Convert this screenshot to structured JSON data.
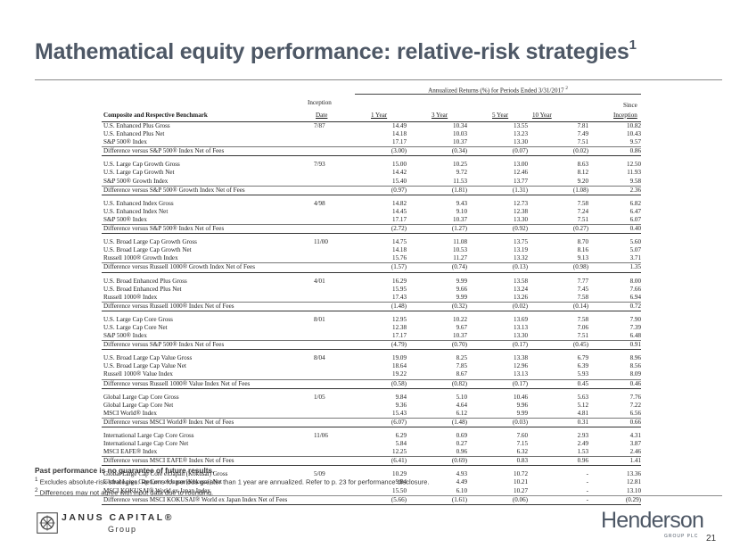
{
  "title": "Mathematical equity performance: relative-risk strategies",
  "title_footnote": "1",
  "table": {
    "annualized_header": "Annualized Returns (%) for Periods Ended 3/31/2017",
    "annualized_footnote": "2",
    "col_benchmark": "Composite and Respective Benchmark",
    "col_inception_l1": "Inception",
    "col_inception_l2": "Date",
    "col_1y": "1 Year",
    "col_3y": "3 Year",
    "col_5y": "5 Year",
    "col_10y": "10 Year",
    "col_since_l1": "Since",
    "col_since_l2": "Inception",
    "groups": [
      {
        "rows": [
          {
            "name": "U.S. Enhanced Plus Gross",
            "date": "7/87",
            "v1": "14.49",
            "v3": "10.34",
            "v5": "13.55",
            "v10": "7.81",
            "vs": "10.82"
          },
          {
            "name": "U.S. Enhanced Plus Net",
            "date": "",
            "v1": "14.18",
            "v3": "10.03",
            "v5": "13.23",
            "v10": "7.49",
            "vs": "10.43"
          },
          {
            "name": "S&P 500® Index",
            "date": "",
            "v1": "17.17",
            "v3": "10.37",
            "v5": "13.30",
            "v10": "7.51",
            "vs": "9.57"
          },
          {
            "name": "Difference versus S&P 500® Index Net of Fees",
            "date": "",
            "v1": "(3.00)",
            "v3": "(0.34)",
            "v5": "(0.07)",
            "v10": "(0.02)",
            "vs": "0.86"
          }
        ]
      },
      {
        "rows": [
          {
            "name": "U.S. Large Cap Growth Gross",
            "date": "7/93",
            "v1": "15.00",
            "v3": "10.25",
            "v5": "13.00",
            "v10": "8.63",
            "vs": "12.50"
          },
          {
            "name": "U.S. Large Cap Growth Net",
            "date": "",
            "v1": "14.42",
            "v3": "9.72",
            "v5": "12.46",
            "v10": "8.12",
            "vs": "11.93"
          },
          {
            "name": "S&P 500® Growth Index",
            "date": "",
            "v1": "15.40",
            "v3": "11.53",
            "v5": "13.77",
            "v10": "9.20",
            "vs": "9.58"
          },
          {
            "name": "Difference versus S&P 500® Growth Index Net of Fees",
            "date": "",
            "v1": "(0.97)",
            "v3": "(1.81)",
            "v5": "(1.31)",
            "v10": "(1.08)",
            "vs": "2.36"
          }
        ]
      },
      {
        "rows": [
          {
            "name": "U.S. Enhanced Index Gross",
            "date": "4/98",
            "v1": "14.82",
            "v3": "9.43",
            "v5": "12.73",
            "v10": "7.58",
            "vs": "6.82"
          },
          {
            "name": "U.S. Enhanced Index Net",
            "date": "",
            "v1": "14.45",
            "v3": "9.10",
            "v5": "12.38",
            "v10": "7.24",
            "vs": "6.47"
          },
          {
            "name": "S&P 500® Index",
            "date": "",
            "v1": "17.17",
            "v3": "10.37",
            "v5": "13.30",
            "v10": "7.51",
            "vs": "6.07"
          },
          {
            "name": "Difference versus S&P 500® Index Net of Fees",
            "date": "",
            "v1": "(2.72)",
            "v3": "(1.27)",
            "v5": "(0.92)",
            "v10": "(0.27)",
            "vs": "0.40"
          }
        ]
      },
      {
        "rows": [
          {
            "name": "U.S. Broad Large Cap Growth Gross",
            "date": "11/00",
            "v1": "14.75",
            "v3": "11.08",
            "v5": "13.75",
            "v10": "8.70",
            "vs": "5.60"
          },
          {
            "name": "U.S. Broad Large Cap Growth Net",
            "date": "",
            "v1": "14.18",
            "v3": "10.53",
            "v5": "13.19",
            "v10": "8.16",
            "vs": "5.07"
          },
          {
            "name": "Russell 1000® Growth Index",
            "date": "",
            "v1": "15.76",
            "v3": "11.27",
            "v5": "13.32",
            "v10": "9.13",
            "vs": "3.71"
          },
          {
            "name": "Difference versus Russell 1000® Growth Index Net of Fees",
            "date": "",
            "v1": "(1.57)",
            "v3": "(0.74)",
            "v5": "(0.13)",
            "v10": "(0.98)",
            "vs": "1.35"
          }
        ]
      },
      {
        "rows": [
          {
            "name": "U.S. Broad Enhanced Plus Gross",
            "date": "4/01",
            "v1": "16.29",
            "v3": "9.99",
            "v5": "13.58",
            "v10": "7.77",
            "vs": "8.00"
          },
          {
            "name": "U.S. Broad Enhanced Plus Net",
            "date": "",
            "v1": "15.95",
            "v3": "9.66",
            "v5": "13.24",
            "v10": "7.45",
            "vs": "7.66"
          },
          {
            "name": "Russell 1000® Index",
            "date": "",
            "v1": "17.43",
            "v3": "9.99",
            "v5": "13.26",
            "v10": "7.58",
            "vs": "6.94"
          },
          {
            "name": "Difference versus Russell 1000® Index Net of Fees",
            "date": "",
            "v1": "(1.48)",
            "v3": "(0.32)",
            "v5": "(0.02)",
            "v10": "(0.14)",
            "vs": "0.72"
          }
        ]
      },
      {
        "rows": [
          {
            "name": "U.S. Large Cap Core Gross",
            "date": "8/01",
            "v1": "12.95",
            "v3": "10.22",
            "v5": "13.69",
            "v10": "7.58",
            "vs": "7.90"
          },
          {
            "name": "U.S. Large Cap Core Net",
            "date": "",
            "v1": "12.38",
            "v3": "9.67",
            "v5": "13.13",
            "v10": "7.06",
            "vs": "7.39"
          },
          {
            "name": "S&P 500® Index",
            "date": "",
            "v1": "17.17",
            "v3": "10.37",
            "v5": "13.30",
            "v10": "7.51",
            "vs": "6.48"
          },
          {
            "name": "Difference versus S&P 500® Index Net of Fees",
            "date": "",
            "v1": "(4.79)",
            "v3": "(0.70)",
            "v5": "(0.17)",
            "v10": "(0.45)",
            "vs": "0.91"
          }
        ]
      },
      {
        "rows": [
          {
            "name": "U.S. Broad Large Cap Value Gross",
            "date": "8/04",
            "v1": "19.09",
            "v3": "8.25",
            "v5": "13.38",
            "v10": "6.79",
            "vs": "8.96"
          },
          {
            "name": "U.S. Broad Large Cap Value Net",
            "date": "",
            "v1": "18.64",
            "v3": "7.85",
            "v5": "12.96",
            "v10": "6.39",
            "vs": "8.56"
          },
          {
            "name": "Russell 1000® Value Index",
            "date": "",
            "v1": "19.22",
            "v3": "8.67",
            "v5": "13.13",
            "v10": "5.93",
            "vs": "8.09"
          },
          {
            "name": "Difference versus Russell 1000® Value Index Net of Fees",
            "date": "",
            "v1": "(0.58)",
            "v3": "(0.82)",
            "v5": "(0.17)",
            "v10": "0.45",
            "vs": "0.46"
          }
        ]
      },
      {
        "rows": [
          {
            "name": "Global Large Cap Core Gross",
            "date": "1/05",
            "v1": "9.84",
            "v3": "5.10",
            "v5": "10.46",
            "v10": "5.63",
            "vs": "7.76"
          },
          {
            "name": "Global Large Cap Core Net",
            "date": "",
            "v1": "9.36",
            "v3": "4.64",
            "v5": "9.96",
            "v10": "5.12",
            "vs": "7.22"
          },
          {
            "name": "MSCI World® Index",
            "date": "",
            "v1": "15.43",
            "v3": "6.12",
            "v5": "9.99",
            "v10": "4.81",
            "vs": "6.56"
          },
          {
            "name": "Difference versus MSCI World® Index Net of Fees",
            "date": "",
            "v1": "(6.07)",
            "v3": "(1.48)",
            "v5": "(0.03)",
            "v10": "0.31",
            "vs": "0.66"
          }
        ]
      },
      {
        "rows": [
          {
            "name": "International Large Cap Core Gross",
            "date": "11/06",
            "v1": "6.29",
            "v3": "0.69",
            "v5": "7.60",
            "v10": "2.93",
            "vs": "4.31"
          },
          {
            "name": "International Large Cap Core Net",
            "date": "",
            "v1": "5.84",
            "v3": "0.27",
            "v5": "7.15",
            "v10": "2.49",
            "vs": "3.87"
          },
          {
            "name": "MSCI EAFE® Index",
            "date": "",
            "v1": "12.25",
            "v3": "0.96",
            "v5": "6.32",
            "v10": "1.53",
            "vs": "2.46"
          },
          {
            "name": "Difference versus MSCI EAFE® Index Net of Fees",
            "date": "",
            "v1": "(6.41)",
            "v3": "(0.69)",
            "v5": "0.83",
            "v10": "0.96",
            "vs": "1.41"
          }
        ]
      },
      {
        "rows": [
          {
            "name": "Global Large Cap Core exJapan (Kokusai) Gross",
            "date": "5/09",
            "v1": "10.29",
            "v3": "4.93",
            "v5": "10.72",
            "v10": "-",
            "vs": "13.36"
          },
          {
            "name": "Global Large Cap Core exJapan (Kokusai) Net",
            "date": "",
            "v1": "9.84",
            "v3": "4.49",
            "v5": "10.21",
            "v10": "-",
            "vs": "12.81"
          },
          {
            "name": "MSCI KOKUSAI® World ex Japan Index",
            "date": "",
            "v1": "15.50",
            "v3": "6.10",
            "v5": "10.27",
            "v10": "-",
            "vs": "13.10"
          },
          {
            "name": "Difference versus MSCI KOKUSAI® World ex Japan Index Net of Fees",
            "date": "",
            "v1": "(5.66)",
            "v3": "(1.61)",
            "v5": "(0.06)",
            "v10": "-",
            "vs": "(0.29)"
          }
        ]
      }
    ]
  },
  "notes": {
    "bold": "Past performance is no guarantee of future results.",
    "n1_mark": "1",
    "n1": " Excludes absolute-risk strategies. Returns for periods greater than 1 year are annualized. Refer to p. 23 for performance disclosure.",
    "n2_mark": "2",
    "n2": " Differences may not agree with input data due to rounding."
  },
  "footer": {
    "janus_name": "JANUS CAPITAL®",
    "janus_group": "Group",
    "henderson_name": "Henderson",
    "henderson_sub": "GROUP PLC",
    "page_number": "21"
  },
  "colors": {
    "title": "#4e5866",
    "rule": "#8a8a8a"
  }
}
